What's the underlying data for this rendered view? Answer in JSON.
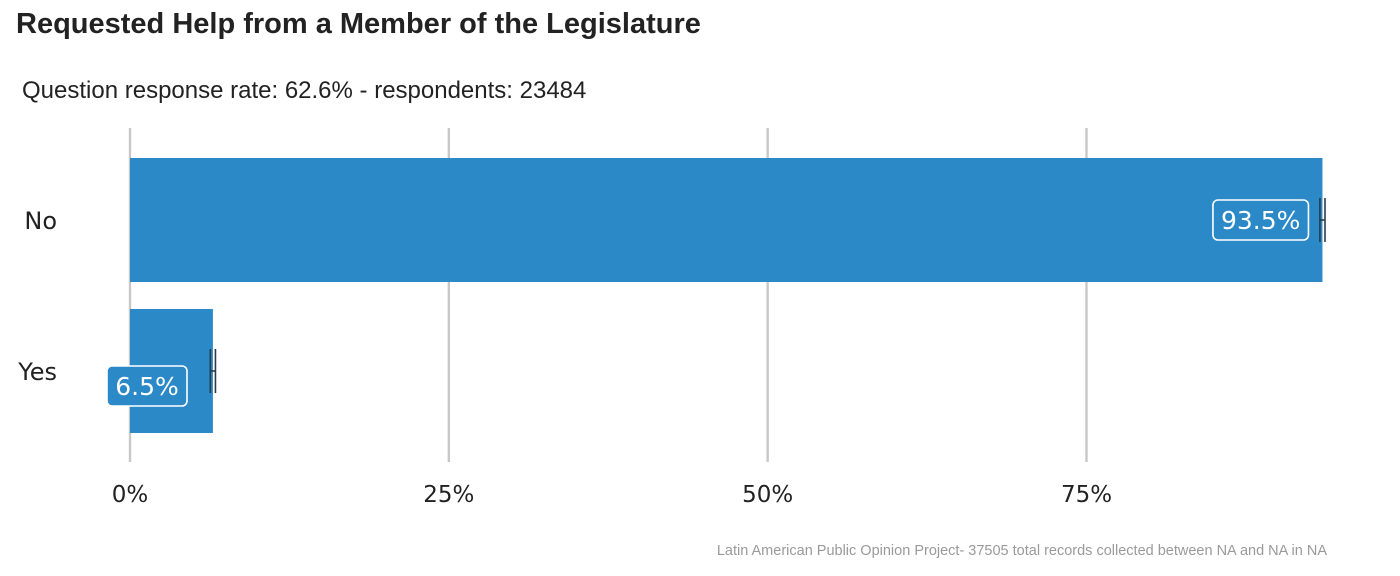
{
  "chart_title": "Requested Help from a Member of the Legislature",
  "chart_subtitle": "Question response rate: 62.6%  - respondents: 23484",
  "chart_caption": "Latin American Public Opinion Project- 37505 total records collected between NA and NA in  NA",
  "colors": {
    "bar": "#2b89c8",
    "grid": "#c8c8c8",
    "error_bar": "#2b3a47",
    "label_border": "#ffffff"
  },
  "chart_data": {
    "type": "bar",
    "orientation": "horizontal",
    "title": "Requested Help from a Member of the Legislature",
    "subtitle": "Question response rate: 62.6%  - respondents: 23484",
    "categories": [
      "No",
      "Yes"
    ],
    "values": [
      93.5,
      6.5
    ],
    "value_labels": [
      "93.5%",
      "6.5%"
    ],
    "error_bars": [
      [
        93.3,
        93.7
      ],
      [
        6.3,
        6.7
      ]
    ],
    "xlim": [
      0,
      93.7
    ],
    "x_ticks": [
      0,
      25,
      50,
      75
    ],
    "x_tick_labels": [
      "0%",
      "25%",
      "50%",
      "75%"
    ],
    "xlabel": "",
    "ylabel": "",
    "grid": "vertical",
    "legend": "none"
  }
}
